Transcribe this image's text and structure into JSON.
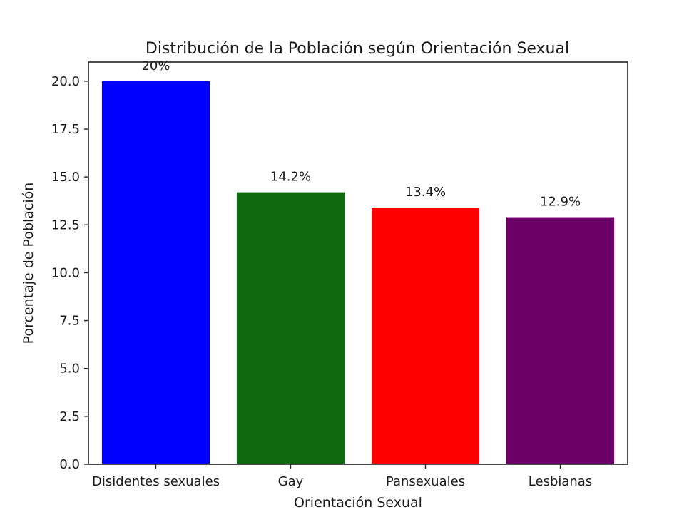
{
  "chart_data": {
    "type": "bar",
    "title": "Distribución de la Población según Orientación Sexual",
    "xlabel": "Orientación Sexual",
    "ylabel": "Porcentaje de Población",
    "categories": [
      "Disidentes sexuales",
      "Gay",
      "Pansexuales",
      "Lesbianas"
    ],
    "values": [
      20,
      14.2,
      13.4,
      12.9
    ],
    "data_labels": [
      "20%",
      "14.2%",
      "13.4%",
      "12.9%"
    ],
    "colors": [
      "#0000ff",
      "#116811",
      "#ff0000",
      "#6a0068"
    ],
    "ylim": [
      0,
      21
    ],
    "yticks": [
      0,
      2.5,
      5,
      7.5,
      10,
      12.5,
      15,
      17.5,
      20
    ],
    "ytick_labels": [
      "0.0",
      "2.5",
      "5.0",
      "7.5",
      "10.0",
      "12.5",
      "15.0",
      "17.5",
      "20.0"
    ],
    "grid": false,
    "legend": "none"
  }
}
